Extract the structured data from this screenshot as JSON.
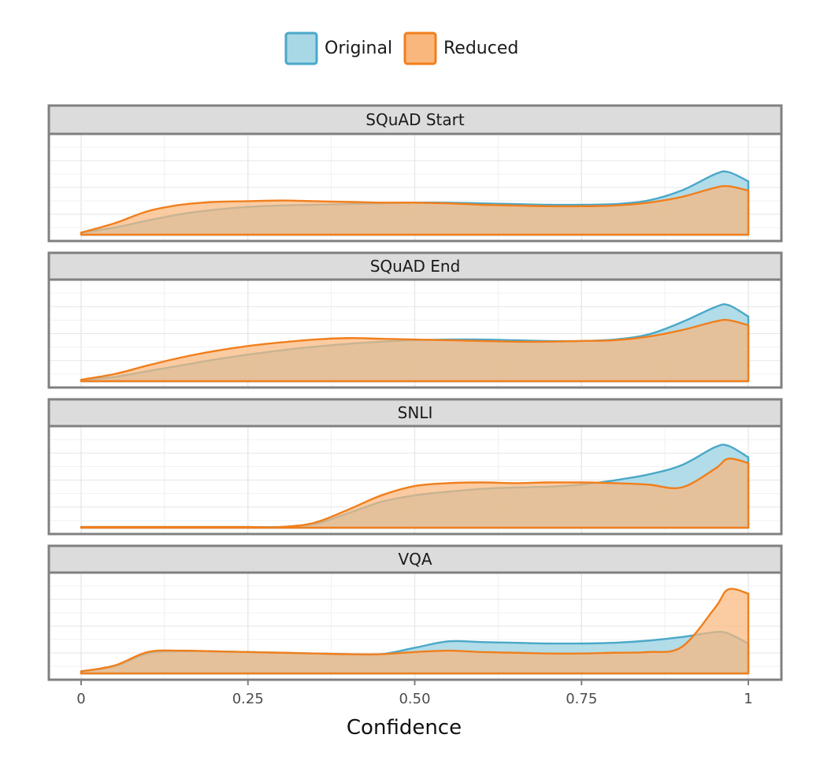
{
  "colors": {
    "original_fill": "#a8d8e6",
    "original_line": "#4aa8c8",
    "reduced_fill": "#f9b77d",
    "reduced_line": "#f07f1d",
    "strip_bg": "#dcdcdc",
    "frame": "#808080",
    "grid": "#e6e6e6"
  },
  "chart_data": {
    "type": "area",
    "xlabel": "Confidence",
    "xlim": [
      0,
      1
    ],
    "x_ticks": [
      0,
      0.25,
      0.5,
      0.75,
      1
    ],
    "x_tick_labels": [
      "0",
      "0.25",
      "0.50",
      "0.75",
      "1"
    ],
    "legend": {
      "placement": "top",
      "items": [
        {
          "name": "Original",
          "color_key": "original"
        },
        {
          "name": "Reduced",
          "color_key": "reduced"
        }
      ]
    },
    "grid": true,
    "x": [
      0,
      0.05,
      0.1,
      0.15,
      0.2,
      0.25,
      0.3,
      0.35,
      0.4,
      0.45,
      0.5,
      0.55,
      0.6,
      0.65,
      0.7,
      0.75,
      0.8,
      0.85,
      0.9,
      0.95,
      0.97,
      1.0
    ],
    "facets": [
      {
        "title": "SQuAD Start",
        "ymax": 1.0,
        "series": [
          {
            "name": "Original",
            "values": [
              0.03,
              0.1,
              0.2,
              0.29,
              0.35,
              0.39,
              0.41,
              0.42,
              0.43,
              0.44,
              0.45,
              0.45,
              0.44,
              0.43,
              0.42,
              0.42,
              0.43,
              0.48,
              0.62,
              0.85,
              0.88,
              0.75
            ]
          },
          {
            "name": "Reduced",
            "values": [
              0.03,
              0.16,
              0.33,
              0.42,
              0.46,
              0.47,
              0.48,
              0.47,
              0.46,
              0.45,
              0.45,
              0.44,
              0.42,
              0.41,
              0.4,
              0.4,
              0.41,
              0.45,
              0.53,
              0.66,
              0.68,
              0.62
            ]
          }
        ]
      },
      {
        "title": "SQuAD End",
        "ymax": 1.0,
        "series": [
          {
            "name": "Original",
            "values": [
              0.02,
              0.06,
              0.14,
              0.22,
              0.3,
              0.37,
              0.43,
              0.48,
              0.52,
              0.55,
              0.57,
              0.58,
              0.58,
              0.57,
              0.56,
              0.56,
              0.58,
              0.65,
              0.82,
              1.03,
              1.06,
              0.9
            ]
          },
          {
            "name": "Reduced",
            "values": [
              0.02,
              0.1,
              0.22,
              0.33,
              0.42,
              0.49,
              0.54,
              0.58,
              0.6,
              0.59,
              0.58,
              0.57,
              0.56,
              0.55,
              0.55,
              0.56,
              0.57,
              0.62,
              0.71,
              0.83,
              0.85,
              0.78
            ]
          }
        ]
      },
      {
        "title": "SNLI",
        "ymax": 1.0,
        "series": [
          {
            "name": "Original",
            "values": [
              0.01,
              0.01,
              0.01,
              0.01,
              0.01,
              0.01,
              0.01,
              0.05,
              0.2,
              0.36,
              0.45,
              0.5,
              0.54,
              0.56,
              0.57,
              0.6,
              0.66,
              0.74,
              0.87,
              1.12,
              1.14,
              0.98
            ]
          },
          {
            "name": "Reduced",
            "values": [
              0.01,
              0.01,
              0.01,
              0.01,
              0.01,
              0.01,
              0.01,
              0.07,
              0.25,
              0.45,
              0.58,
              0.62,
              0.63,
              0.62,
              0.63,
              0.63,
              0.62,
              0.6,
              0.56,
              0.82,
              0.96,
              0.9
            ]
          }
        ]
      },
      {
        "title": "VQA",
        "ymax": 1.0,
        "series": [
          {
            "name": "Original",
            "values": [
              0.03,
              0.1,
              0.28,
              0.31,
              0.31,
              0.3,
              0.29,
              0.28,
              0.27,
              0.27,
              0.36,
              0.45,
              0.44,
              0.43,
              0.42,
              0.42,
              0.43,
              0.46,
              0.51,
              0.58,
              0.56,
              0.42
            ]
          },
          {
            "name": "Reduced",
            "values": [
              0.03,
              0.11,
              0.3,
              0.32,
              0.31,
              0.3,
              0.29,
              0.28,
              0.27,
              0.27,
              0.3,
              0.32,
              0.3,
              0.29,
              0.28,
              0.28,
              0.29,
              0.3,
              0.37,
              0.92,
              1.18,
              1.12
            ]
          }
        ]
      }
    ]
  }
}
